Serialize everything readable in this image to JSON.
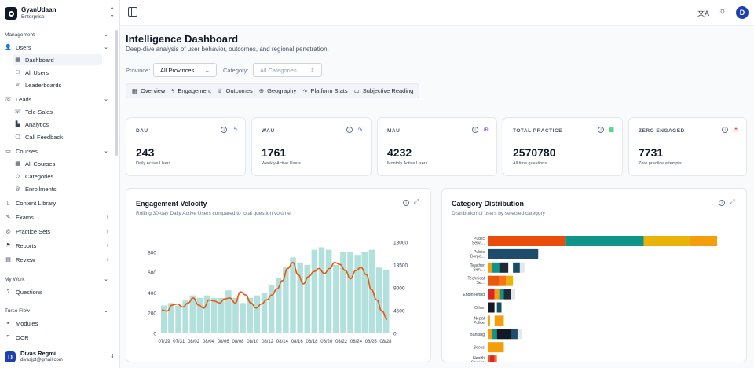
{
  "sidebar": {
    "brand": {
      "name": "GyanUdaan",
      "sub": "Enterprise"
    },
    "sections": {
      "management": "Management",
      "my_work": "My Work",
      "turso": "Turso Flow"
    },
    "items": {
      "users": "Users",
      "dashboard": "Dashboard",
      "all_users": "All Users",
      "leaderboards": "Leaderboards",
      "leads": "Leads",
      "tele_sales": "Tele-Sales",
      "analytics": "Analytics",
      "call_feedback": "Call Feedback",
      "courses": "Courses",
      "all_courses": "All Courses",
      "categories": "Categories",
      "enrollments": "Enrollments",
      "content_library": "Content Library",
      "exams": "Exams",
      "practice_sets": "Practice Sets",
      "reports": "Reports",
      "review": "Review",
      "questions": "Questions",
      "modules": "Modules",
      "ocr": "OCR"
    },
    "user": {
      "name": "Divas Regmi",
      "email": "divasjpt@gmail.com",
      "initial": "D"
    }
  },
  "topbar": {
    "avatar_initial": "D"
  },
  "page": {
    "title": "Intelligence Dashboard",
    "subtitle": "Deep-dive analysis of user behavior, outcomes, and regional penetration."
  },
  "filters": {
    "province_label": "Province:",
    "province_value": "All Provinces",
    "category_label": "Category:",
    "category_value": "All Categories"
  },
  "tabs": [
    "Overview",
    "Engagement",
    "Outcomes",
    "Geography",
    "Platform Stats",
    "Subjective Reading"
  ],
  "kpis": [
    {
      "label": "DAU",
      "value": "243",
      "caption": "Daily Active Users",
      "icon": "bolt-icon",
      "color": "#3b82f6"
    },
    {
      "label": "WAU",
      "value": "1761",
      "caption": "Weekly Active Users",
      "icon": "activity-icon",
      "color": "#6366f1"
    },
    {
      "label": "MAU",
      "value": "4232",
      "caption": "Monthly Active Users",
      "icon": "globe-icon",
      "color": "#8b5cf6"
    },
    {
      "label": "TOTAL PRACTICE",
      "value": "2570780",
      "caption": "All time questions",
      "icon": "grid-icon",
      "color": "#22c55e"
    },
    {
      "label": "ZERO ENGAGED",
      "value": "7731",
      "caption": "Zero practice attempts",
      "icon": "shield-alert-icon",
      "color": "#ef4444"
    }
  ],
  "engagement": {
    "title": "Engagement Velocity",
    "subtitle": "Rolling 30-day Daily Active Users compared to total question volume."
  },
  "category_card": {
    "title": "Category Distribution",
    "subtitle": "Distribution of users by selected category"
  },
  "chart_data": [
    {
      "type": "bar+line",
      "x_ticks": [
        "07/29",
        "07/31",
        "08/02",
        "08/04",
        "08/06",
        "08/08",
        "08/10",
        "08/12",
        "08/14",
        "08/16",
        "08/18",
        "08/20",
        "08/22",
        "08/24",
        "08/26",
        "08/28"
      ],
      "y_left_ticks": [
        0,
        200,
        400,
        600,
        800
      ],
      "y_right_ticks": [
        0,
        4500,
        9000,
        13500,
        18000
      ],
      "ylim_left": [
        0,
        900
      ],
      "ylim_right": [
        0,
        18000
      ],
      "series": [
        {
          "axis": "right",
          "kind": "bar",
          "color": "#b2e0dc",
          "values": [
            5500,
            6000,
            5500,
            6500,
            7500,
            7000,
            7500,
            7000,
            7000,
            8500,
            7000,
            6000,
            7000,
            7500,
            8000,
            9500,
            11000,
            13000,
            15000,
            14000,
            13500,
            16500,
            17000,
            16500,
            13500,
            16000,
            16000,
            15500,
            16000,
            16500,
            13000,
            12500
          ]
        },
        {
          "axis": "left",
          "kind": "line",
          "color": "#ea580c",
          "values": [
            230,
            220,
            280,
            290,
            260,
            300,
            350,
            280,
            250,
            330,
            320,
            300,
            340,
            350,
            300,
            410,
            380,
            300,
            250,
            290,
            330,
            380,
            440,
            520,
            640,
            700,
            580,
            490,
            560,
            610,
            640,
            590,
            640,
            700,
            680,
            620,
            540,
            620,
            650,
            580,
            430,
            330,
            220,
            140
          ]
        }
      ]
    },
    {
      "type": "bar",
      "orientation": "horizontal",
      "stacked": true,
      "categories": [
        "Public Servi...",
        "Public Corpo...",
        "Teacher Serv...",
        "Technical Se...",
        "Engineering",
        "Other",
        "Nepal Police",
        "Banking",
        "Books",
        "Health Service"
      ],
      "segments": [
        [
          [
            0.34,
            "#ea4c0c"
          ],
          [
            0.34,
            "#0e9488"
          ],
          [
            0.2,
            "#eab308"
          ],
          [
            0.12,
            "#f59e0b"
          ]
        ],
        [
          [
            0.22,
            "#1e4d6b"
          ]
        ],
        [
          [
            0.02,
            "#f59e0b"
          ],
          [
            0.03,
            "#0e9488"
          ],
          [
            0.04,
            "#1f2937"
          ],
          [
            0.02,
            "#fff"
          ],
          [
            0.03,
            "#164e63"
          ],
          [
            0.02,
            "#e2e8f0"
          ]
        ],
        [
          [
            0.05,
            "#ea580c"
          ],
          [
            0.03,
            "#f97316"
          ],
          [
            0.03,
            "#eab308"
          ]
        ],
        [
          [
            0.03,
            "#dc2626"
          ],
          [
            0.02,
            "#f59e0b"
          ],
          [
            0.02,
            "#0e9488"
          ],
          [
            0.03,
            "#1f2937"
          ],
          [
            0.02,
            "#e5e7eb"
          ]
        ],
        [
          [
            0.03,
            "#111827"
          ],
          [
            0.01,
            "#fff"
          ],
          [
            0.02,
            "#164e63"
          ]
        ],
        [
          [
            0.01,
            "#f59e0b"
          ],
          [
            0.02,
            "#fff"
          ],
          [
            0.04,
            "#f59e0b"
          ]
        ],
        [
          [
            0.02,
            "#f59e0b"
          ],
          [
            0.02,
            "#0e9488"
          ],
          [
            0.06,
            "#111827"
          ],
          [
            0.03,
            "#1e4d6b"
          ],
          [
            0.02,
            "#e2e8f0"
          ]
        ],
        [
          [
            0.07,
            "#f59e0b"
          ]
        ],
        [
          [
            0.01,
            "#ea580c"
          ],
          [
            0.02,
            "#dc2626"
          ],
          [
            0.01,
            "#f97316"
          ]
        ]
      ]
    }
  ]
}
